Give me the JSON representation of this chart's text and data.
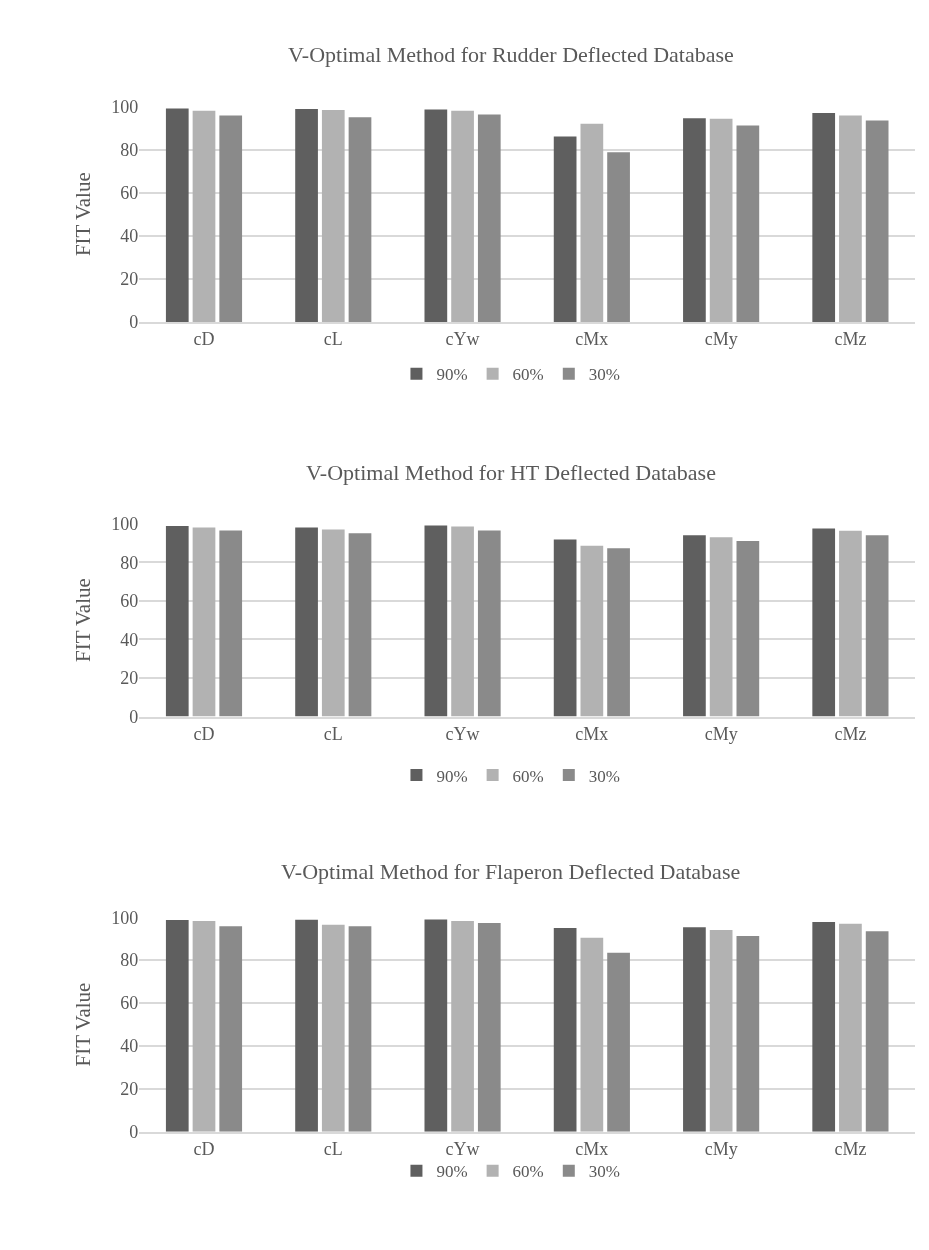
{
  "chart_data": [
    {
      "type": "bar",
      "title": "V-Optimal Method for Rudder Deflected Database",
      "ylabel": "FIT Value",
      "categories": [
        "cD",
        "cL",
        "cYw",
        "cMx",
        "cMy",
        "cMz"
      ],
      "ylim": [
        0,
        100
      ],
      "yticks": [
        0,
        20,
        40,
        60,
        80,
        100
      ],
      "grid": "y",
      "legend": "bottom",
      "series": [
        {
          "name": "90%",
          "color": "#5f5f5f",
          "values": [
            99,
            98.8,
            98.6,
            86,
            94.5,
            97
          ]
        },
        {
          "name": "60%",
          "color": "#b2b2b2",
          "values": [
            98,
            98.3,
            98,
            92,
            94.3,
            95.8
          ]
        },
        {
          "name": "30%",
          "color": "#8a8a8a",
          "values": [
            95.8,
            95,
            96.2,
            78.7,
            91.2,
            93.5
          ]
        }
      ]
    },
    {
      "type": "bar",
      "title": "V-Optimal Method for HT Deflected Database",
      "ylabel": "FIT Value",
      "categories": [
        "cD",
        "cL",
        "cYw",
        "cMx",
        "cMy",
        "cMz"
      ],
      "ylim": [
        0,
        100
      ],
      "yticks": [
        0,
        20,
        40,
        60,
        80,
        100
      ],
      "grid": "y",
      "legend": "bottom",
      "series": [
        {
          "name": "90%",
          "color": "#5f5f5f",
          "values": [
            98.8,
            98,
            99,
            91.8,
            94,
            97.5
          ]
        },
        {
          "name": "60%",
          "color": "#b2b2b2",
          "values": [
            98,
            97,
            98.5,
            88.5,
            93,
            96.3
          ]
        },
        {
          "name": "30%",
          "color": "#8a8a8a",
          "values": [
            96.5,
            95,
            96.5,
            87.3,
            91,
            94
          ]
        }
      ]
    },
    {
      "type": "bar",
      "title": "V-Optimal Method for Flaperon Deflected Database",
      "ylabel": "FIT Value",
      "categories": [
        "cD",
        "cL",
        "cYw",
        "cMx",
        "cMy",
        "cMz"
      ],
      "ylim": [
        0,
        100
      ],
      "yticks": [
        0,
        20,
        40,
        60,
        80,
        100
      ],
      "grid": "y",
      "legend": "bottom",
      "series": [
        {
          "name": "90%",
          "color": "#5f5f5f",
          "values": [
            98.7,
            98.8,
            99,
            95,
            95.3,
            97.8
          ]
        },
        {
          "name": "60%",
          "color": "#b2b2b2",
          "values": [
            98.2,
            96.5,
            98.3,
            90.5,
            94,
            97
          ]
        },
        {
          "name": "30%",
          "color": "#8a8a8a",
          "values": [
            95.8,
            95.8,
            97.3,
            83.5,
            91.3,
            93.5
          ]
        }
      ]
    }
  ]
}
